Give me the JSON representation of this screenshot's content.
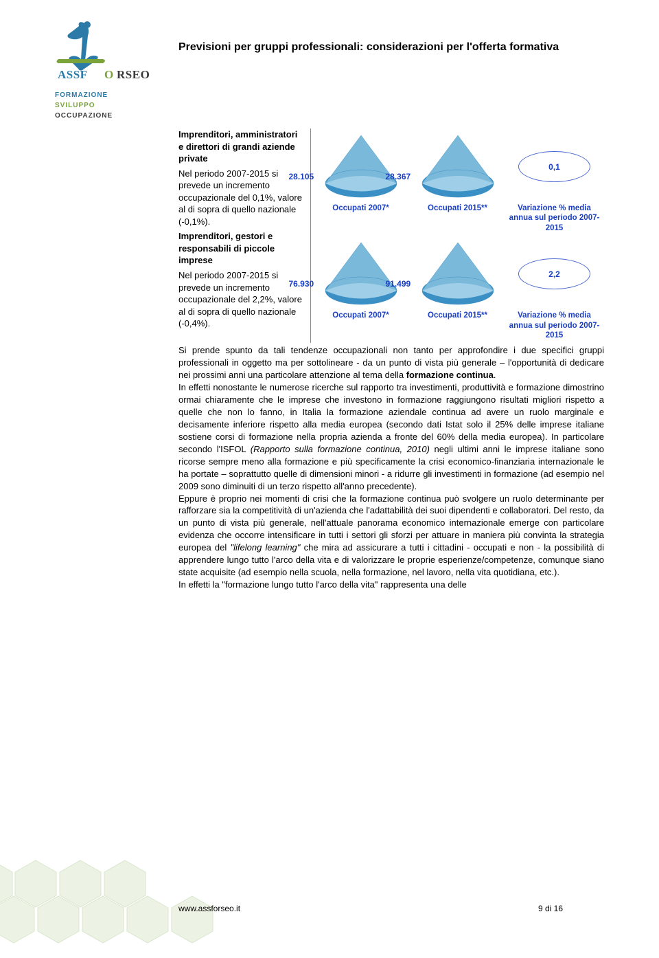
{
  "logo": {
    "name": "ASSFORSEO",
    "sub1": "FORMAZIONE",
    "sub2": "SVILUPPO",
    "sub3": "OCCUPAZIONE",
    "colors": {
      "blue": "#2b7aa8",
      "green": "#7aa43a",
      "dark": "#3a3a3a"
    }
  },
  "title": "Previsioni per gruppi professionali: considerazioni per l'offerta formativa",
  "leftcol": {
    "h1": "Imprenditori, amministratori e direttori di grandi aziende private",
    "p1": "Nel periodo 2007-2015 si prevede un incremento occupazionale del 0,1%, valore al di sopra di quello nazionale (-0,1%).",
    "h2": "Imprenditori, gestori e responsabili di piccole imprese",
    "p2": "Nel periodo 2007-2015 si prevede un incremento occupazionale del 2,2%, valore al di sopra di quello nazionale (-0,4%)."
  },
  "charts": [
    {
      "cells": [
        {
          "type": "cone",
          "value": "28.105",
          "caption": "Occupati 2007*",
          "fill_top": "#9fcfe8",
          "fill_bot": "#3a8fc4"
        },
        {
          "type": "cone",
          "value": "28.367",
          "caption": "Occupati 2015**",
          "fill_top": "#9fcfe8",
          "fill_bot": "#3a8fc4"
        },
        {
          "type": "ellipse",
          "value": "0,1",
          "caption": "Variazione % media annua sul periodo 2007-2015"
        }
      ]
    },
    {
      "cells": [
        {
          "type": "cone",
          "value": "76.930",
          "caption": "Occupati 2007*",
          "fill_top": "#9fcfe8",
          "fill_bot": "#3a8fc4"
        },
        {
          "type": "cone",
          "value": "91.499",
          "caption": "Occupati 2015**",
          "fill_top": "#9fcfe8",
          "fill_bot": "#3a8fc4"
        },
        {
          "type": "ellipse",
          "value": "2,2",
          "caption": "Variazione % media annua sul periodo 2007-2015"
        }
      ]
    }
  ],
  "body": {
    "p1a": "Si prende spunto da tali tendenze occupazionali non tanto per approfondire i due specifici gruppi professionali in oggetto ma per sottolineare - da un punto di vista più generale – l'opportunità di dedicare nei prossimi anni una particolare attenzione al tema della ",
    "p1b": "formazione continua",
    "p1c": ".",
    "p2a": "In effetti nonostante le numerose ricerche sul rapporto tra investimenti, produttività e formazione dimostrino ormai chiaramente che le imprese che investono in formazione raggiungono risultati migliori rispetto a quelle che non lo fanno, in Italia la formazione aziendale continua ad avere un ruolo marginale e decisamente inferiore rispetto alla media europea (secondo dati Istat solo il 25% delle imprese italiane sostiene corsi di formazione nella propria azienda a fronte del 60% della media europea). In particolare secondo l'ISFOL ",
    "p2b": "(Rapporto sulla formazione continua, 2010)",
    "p2c": " negli ultimi anni le imprese italiane sono ricorse sempre meno alla formazione e più specificamente la crisi economico-finanziaria internazionale le ha portate – soprattutto quelle di dimensioni minori - a ridurre gli investimenti in formazione (ad esempio nel 2009 sono diminuiti di un terzo rispetto all'anno precedente).",
    "p3a": "Eppure è proprio nei momenti di crisi che la formazione continua può svolgere un ruolo determinante per rafforzare sia la competitività di un'azienda che l'adattabilità dei suoi dipendenti e collaboratori. Del resto, da un punto di vista più generale, nell'attuale panorama economico internazionale emerge con particolare evidenza che occorre intensificare in tutti i settori gli sforzi per attuare in maniera più convinta la strategia europea del ",
    "p3b": "\"lifelong learning\"",
    "p3c": " che mira ad assicurare a tutti i cittadini - occupati e non - la possibilità di apprendere lungo tutto l'arco della vita e di valorizzare le proprie esperienze/competenze, comunque siano state acquisite (ad esempio nella scuola, nella formazione, nel lavoro, nella vita quotidiana, etc.).",
    "p4": "In effetti la \"formazione lungo tutto l'arco della vita\" rappresenta una delle"
  },
  "footer": {
    "url": "www.assforseo.it",
    "page": "9 di 16"
  },
  "hex": {
    "fill": "#d8e6cc",
    "stroke": "#c4d8b4"
  }
}
